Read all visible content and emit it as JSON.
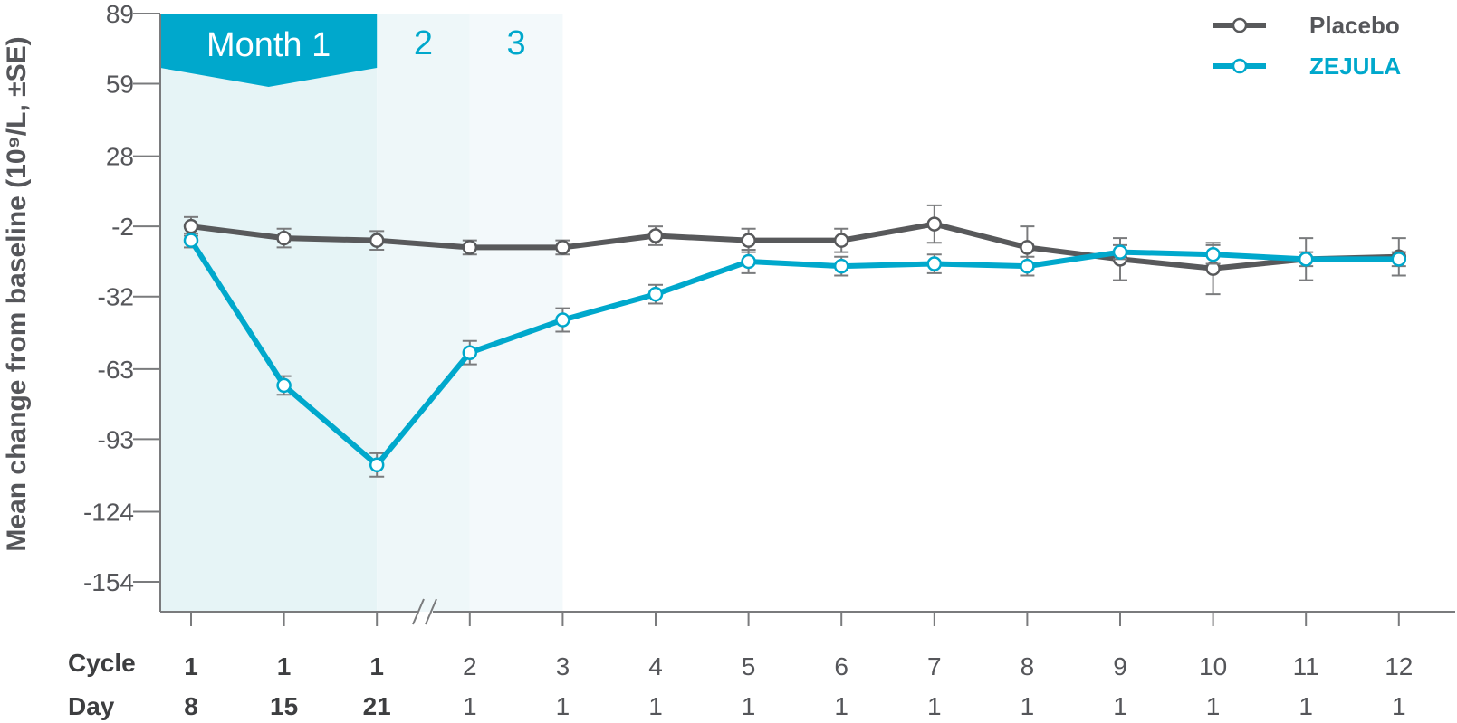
{
  "chart_data": {
    "type": "line",
    "ylabel": "Mean change from baseline (10⁹/L, ±SE)",
    "ylim": [
      -167,
      89
    ],
    "yticks": [
      "89",
      "59",
      "28",
      "-2",
      "-32",
      "-63",
      "-93",
      "-124",
      "-154"
    ],
    "ytick_values": [
      89,
      59,
      28,
      -2,
      -32,
      -63,
      -93,
      -124,
      -154
    ],
    "row_labels": {
      "cycle": "Cycle",
      "day": "Day"
    },
    "cycles": [
      "1",
      "1",
      "1",
      "2",
      "3",
      "4",
      "5",
      "6",
      "7",
      "8",
      "9",
      "10",
      "11",
      "12"
    ],
    "days": [
      "8",
      "15",
      "21",
      "1",
      "1",
      "1",
      "1",
      "1",
      "1",
      "1",
      "1",
      "1",
      "1",
      "1"
    ],
    "bold_count": 3,
    "month_bands": [
      {
        "label": "Month 1",
        "color": "#e6f4f6",
        "header_color": "#00a8cc"
      },
      {
        "label": "2",
        "color": "#eef7f9"
      },
      {
        "label": "3",
        "color": "#f3f9fb"
      }
    ],
    "series": [
      {
        "name": "Placebo",
        "color": "#58595b",
        "values": [
          -2,
          -7,
          -8,
          -11,
          -11,
          -6,
          -8,
          -8,
          -1,
          -11,
          -16,
          -20,
          -16,
          -15
        ],
        "se": [
          4,
          4,
          4,
          3,
          3,
          4,
          5,
          5,
          8,
          9,
          9,
          11,
          9,
          8
        ]
      },
      {
        "name": "ZEJULA",
        "color": "#00a8cc",
        "values": [
          -8,
          -70,
          -104,
          -56,
          -42,
          -31,
          -17,
          -19,
          -18,
          -19,
          -13,
          -14,
          -16,
          -16
        ],
        "se": [
          3,
          4,
          5,
          5,
          5,
          4,
          5,
          4,
          4,
          4,
          3,
          4,
          3,
          3
        ]
      }
    ],
    "legend_position": "top-right",
    "grid": false
  }
}
